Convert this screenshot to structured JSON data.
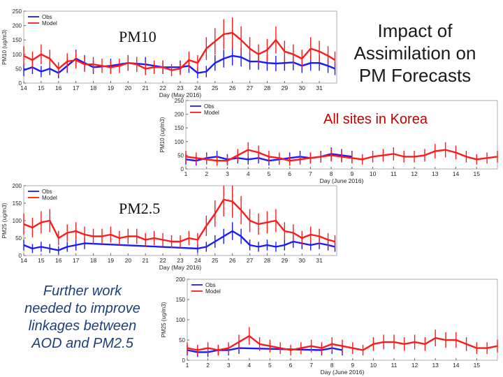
{
  "slide": {
    "title_lines": [
      "Impact of",
      "Assimilation on",
      "PM Forecasts"
    ],
    "subtitle": "All sites in Korea",
    "note_lines": [
      "Further work",
      "needed to improve",
      "linkages between",
      "AOD and PM2.5"
    ],
    "label_pm10": "PM10",
    "label_pm25": "PM2.5"
  },
  "colors": {
    "obs": "#1a1aff",
    "model": "#ff1a1a",
    "frame": "#999999",
    "text": "#222222"
  },
  "chart_data": [
    {
      "type": "line",
      "ylabel": "PM10 (ug/m3)",
      "xlabel": "Day (May 2016)",
      "ylim": [
        0,
        250
      ],
      "yticks": [
        "0",
        "50",
        "100",
        "150",
        "200",
        "250"
      ],
      "xlim": [
        14,
        32
      ],
      "xticks": [
        "14",
        "15",
        "16",
        "17",
        "18",
        "19",
        "20",
        "21",
        "22",
        "23",
        "24",
        "25",
        "26",
        "27",
        "28",
        "29",
        "30",
        "31"
      ],
      "legend": [
        "Obs",
        "Model"
      ],
      "series": [
        {
          "name": "Obs",
          "x": [
            14,
            14.5,
            15,
            15.5,
            16,
            16.5,
            17,
            17.5,
            18,
            19,
            20,
            21,
            22,
            23,
            23.5,
            24,
            24.5,
            25,
            25.5,
            26,
            26.5,
            27,
            27.5,
            28,
            28.5,
            29,
            29.5,
            30,
            30.5,
            31,
            31.5,
            31.9
          ],
          "values": [
            45,
            55,
            40,
            50,
            35,
            60,
            85,
            70,
            55,
            60,
            70,
            65,
            55,
            55,
            60,
            35,
            40,
            70,
            85,
            95,
            90,
            75,
            75,
            70,
            68,
            70,
            72,
            60,
            70,
            70,
            60,
            50
          ]
        },
        {
          "name": "Model",
          "x": [
            14,
            14.5,
            15,
            15.5,
            16,
            16.5,
            17,
            17.5,
            18,
            18.5,
            19,
            19.5,
            20,
            20.5,
            21,
            21.5,
            22,
            22.5,
            23,
            23.5,
            24,
            24.5,
            25,
            25.5,
            26,
            26.5,
            27,
            27.5,
            28,
            28.5,
            29,
            29.5,
            30,
            30.5,
            31,
            31.5,
            31.9
          ],
          "values": [
            95,
            80,
            100,
            85,
            50,
            75,
            80,
            65,
            65,
            60,
            55,
            60,
            70,
            65,
            50,
            55,
            55,
            45,
            50,
            80,
            70,
            120,
            145,
            170,
            175,
            150,
            120,
            100,
            115,
            150,
            110,
            100,
            85,
            120,
            110,
            95,
            80
          ]
        }
      ]
    },
    {
      "type": "line",
      "ylabel": "PM10 (ug/m3)",
      "xlabel": "Day (June 2016)",
      "ylim": [
        0,
        250
      ],
      "yticks": [
        "0",
        "50",
        "100",
        "150",
        "200",
        "250"
      ],
      "xlim": [
        1,
        16
      ],
      "xticks": [
        "1",
        "2",
        "3",
        "4",
        "5",
        "6",
        "7",
        "8",
        "9",
        "10",
        "11",
        "12",
        "13",
        "14",
        "15"
      ],
      "legend": [
        "Obs",
        "Model"
      ],
      "series": [
        {
          "name": "Obs",
          "x": [
            1,
            1.5,
            2,
            2.5,
            3,
            3.5,
            4,
            4.5,
            5,
            5.5,
            6,
            6.5,
            7,
            7.5,
            8,
            8.5,
            9
          ],
          "values": [
            35,
            30,
            40,
            45,
            35,
            40,
            35,
            40,
            30,
            35,
            40,
            45,
            40,
            45,
            55,
            50,
            45
          ]
        },
        {
          "name": "Model",
          "x": [
            1,
            1.5,
            2,
            2.5,
            3,
            3.5,
            4,
            4.5,
            5,
            5.5,
            6,
            6.5,
            7,
            7.5,
            8,
            8.5,
            9,
            9.5,
            10,
            10.5,
            11,
            11.5,
            12,
            12.5,
            13,
            13.5,
            14,
            14.5,
            15,
            15.5,
            16
          ],
          "values": [
            45,
            40,
            35,
            30,
            30,
            50,
            70,
            60,
            45,
            40,
            30,
            35,
            40,
            45,
            50,
            45,
            40,
            35,
            45,
            50,
            55,
            45,
            45,
            50,
            65,
            70,
            60,
            45,
            35,
            40,
            45
          ]
        }
      ]
    },
    {
      "type": "line",
      "ylabel": "PM25 (ug/m3)",
      "xlabel": "Day (May 2016)",
      "ylim": [
        0,
        200
      ],
      "yticks": [
        "0",
        "50",
        "100",
        "150",
        "200"
      ],
      "xlim": [
        14,
        32
      ],
      "xticks": [
        "14",
        "15",
        "16",
        "17",
        "18",
        "19",
        "20",
        "21",
        "22",
        "23",
        "24",
        "25",
        "26",
        "27",
        "28",
        "29",
        "30",
        "31"
      ],
      "legend": [
        "Obs",
        "Model"
      ],
      "series": [
        {
          "name": "Obs",
          "x": [
            14,
            14.5,
            15,
            15.5,
            16,
            16.5,
            17,
            17.5,
            24,
            24.5,
            25,
            25.5,
            26,
            26.5,
            27,
            27.5,
            28,
            28.5,
            29,
            29.5,
            30,
            30.5,
            31,
            31.5,
            31.9
          ],
          "values": [
            30,
            20,
            25,
            20,
            15,
            25,
            30,
            35,
            20,
            25,
            40,
            55,
            70,
            55,
            30,
            25,
            30,
            25,
            30,
            40,
            35,
            30,
            35,
            30,
            25
          ]
        },
        {
          "name": "Model",
          "x": [
            14,
            14.5,
            15,
            15.5,
            16,
            16.5,
            17,
            17.5,
            18,
            18.5,
            19,
            19.5,
            20,
            20.5,
            21,
            21.5,
            22,
            22.5,
            23,
            23.5,
            24,
            24.5,
            25,
            25.5,
            26,
            26.5,
            27,
            27.5,
            28,
            28.5,
            29,
            29.5,
            30,
            30.5,
            31,
            31.5,
            31.9
          ],
          "values": [
            90,
            80,
            95,
            100,
            50,
            65,
            70,
            60,
            55,
            55,
            60,
            50,
            55,
            55,
            45,
            50,
            45,
            40,
            40,
            50,
            45,
            85,
            120,
            160,
            155,
            130,
            100,
            90,
            95,
            100,
            70,
            65,
            50,
            60,
            55,
            45,
            40
          ]
        }
      ]
    },
    {
      "type": "line",
      "ylabel": "PM25 (ug/m3)",
      "xlabel": "Day (June 2016)",
      "ylim": [
        0,
        200
      ],
      "yticks": [
        "0",
        "50",
        "100",
        "150",
        "200"
      ],
      "xlim": [
        1,
        16
      ],
      "xticks": [
        "1",
        "2",
        "3",
        "4",
        "5",
        "6",
        "7",
        "8",
        "9",
        "10",
        "11",
        "12",
        "13",
        "14",
        "15"
      ],
      "legend": [
        "Obs",
        "Model"
      ],
      "series": [
        {
          "name": "Obs",
          "x": [
            1,
            1.5,
            2,
            2.5,
            3,
            3.5,
            7.5,
            8,
            8.5
          ],
          "values": [
            25,
            20,
            20,
            25,
            25,
            30,
            25,
            30,
            25
          ]
        },
        {
          "name": "Model",
          "x": [
            1,
            1.5,
            2,
            2.5,
            3,
            3.5,
            4,
            4.5,
            5,
            5.5,
            6,
            6.5,
            7,
            7.5,
            8,
            8.5,
            9,
            9.5,
            10,
            10.5,
            11,
            11.5,
            12,
            12.5,
            13,
            13.5,
            14,
            14.5,
            15,
            15.5,
            16
          ],
          "values": [
            30,
            25,
            30,
            25,
            30,
            45,
            60,
            40,
            35,
            30,
            25,
            30,
            35,
            30,
            40,
            35,
            30,
            25,
            40,
            45,
            45,
            40,
            45,
            40,
            55,
            50,
            50,
            40,
            30,
            30,
            35
          ]
        }
      ]
    }
  ]
}
